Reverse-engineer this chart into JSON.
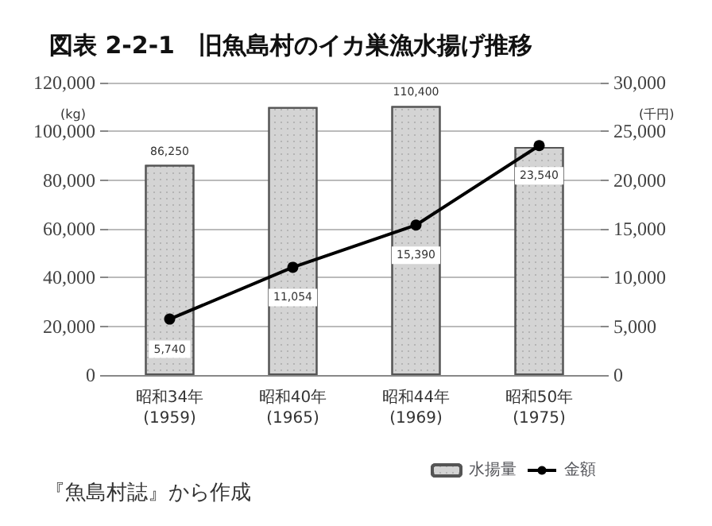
{
  "chart_data": {
    "type": "bar",
    "title": "図表 2-2-1　旧魚島村のイカ巣漁水揚げ推移",
    "ylabel": "(kg)",
    "y2label": "(千円)",
    "categories": [
      "昭和34年\n(1959)",
      "昭和40年\n(1965)",
      "昭和44年\n(1969)",
      "昭和50年\n(1975)"
    ],
    "series": [
      {
        "name": "水揚量",
        "color": "#d4d4d4",
        "values": [
          86250,
          110000,
          110400,
          93600
        ],
        "value_labels": [
          "86,250",
          null,
          "110,400",
          null
        ]
      },
      {
        "name": "金額",
        "type": "line",
        "axis": "y2",
        "color": "#000000",
        "values": [
          5740,
          11054,
          15390,
          23540
        ],
        "value_labels": [
          "5,740",
          "11,054",
          "15,390",
          "23,540"
        ]
      }
    ],
    "ylim": [
      0,
      120000
    ],
    "yticks": [
      0,
      {
        "value": 20000,
        "label": "20,000"
      },
      {
        "value": 40000,
        "label": "40,000"
      },
      {
        "value": 60000,
        "label": "60,000"
      },
      {
        "value": 80000,
        "label": "80,000"
      },
      {
        "value": 100000,
        "label": "100,000"
      },
      {
        "value": 120000,
        "label": "120,000"
      }
    ],
    "y2lim": [
      0,
      30000
    ],
    "y2ticks": [
      0,
      {
        "value": 5000,
        "label": "5,000"
      },
      {
        "value": 10000,
        "label": "10,000"
      },
      {
        "value": 15000,
        "label": "15,000"
      },
      {
        "value": 20000,
        "label": "20,000"
      },
      {
        "value": 25000,
        "label": "25,000"
      },
      {
        "value": 30000,
        "label": "30,000"
      }
    ],
    "grid": "y",
    "legend": "bottom right",
    "marker": "circle",
    "line_style": "solid",
    "annotations": [
      "『魚島村誌』から作成"
    ]
  }
}
